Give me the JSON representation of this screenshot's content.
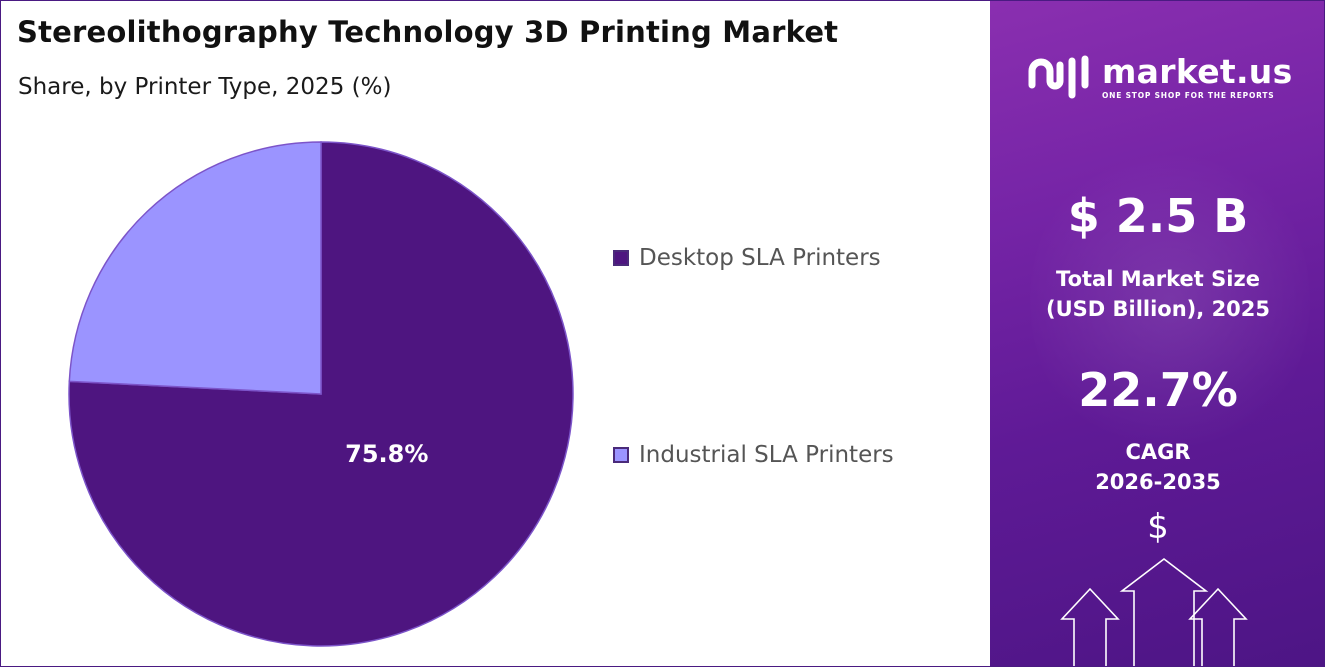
{
  "chart_data": {
    "type": "pie",
    "title": "Stereolithography Technology 3D Printing Market",
    "subtitle": "Share, by Printer Type, 2025 (%)",
    "slices": [
      {
        "label": "Desktop SLA Printers",
        "value": 75.8,
        "color": "#4e1580",
        "display": "75.8%"
      },
      {
        "label": "Industrial SLA Printers",
        "value": 24.2,
        "color": "#9b94ff"
      }
    ],
    "legend_position": "right"
  },
  "sidebar": {
    "logo_name": "market.us",
    "logo_tagline": "ONE STOP SHOP FOR THE REPORTS",
    "market_size_value": "$ 2.5 B",
    "market_size_label_line1": "Total Market Size",
    "market_size_label_line2": "(USD Billion), 2025",
    "cagr_value": "22.7%",
    "cagr_label_line1": "CAGR",
    "cagr_label_line2": "2026-2035",
    "dollar_symbol": "$",
    "accent_color": "#7a26a8"
  }
}
